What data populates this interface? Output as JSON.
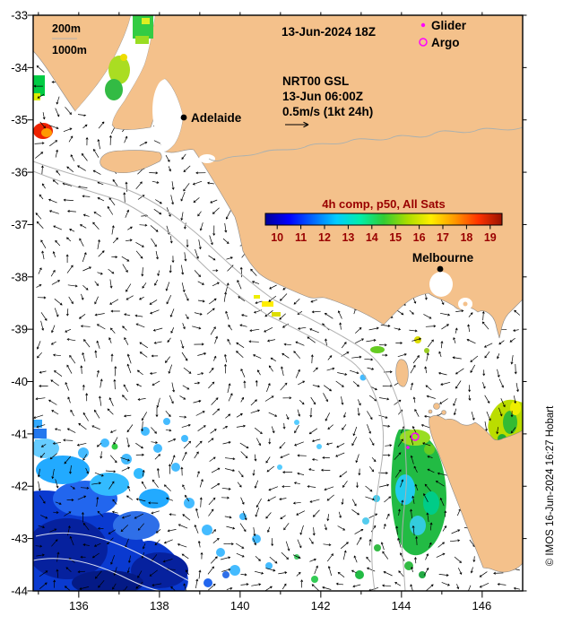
{
  "header": {
    "contour_labels": {
      "c200": "200m",
      "c1000": "1000m"
    },
    "timestamp": "13-Jun-2024 18Z",
    "obs_legend": {
      "glider": "Glider",
      "argo": "Argo",
      "marker_color": "#ff00ff"
    },
    "model": {
      "name": "NRT00 GSL",
      "valid": "13-Jun 06:00Z",
      "vector_scale": "0.5m/s (1kt 24h)"
    }
  },
  "colorbar": {
    "label": "4h comp, p50, All Sats",
    "tick_labels": [
      "10",
      "11",
      "12",
      "13",
      "14",
      "15",
      "16",
      "17",
      "18",
      "19"
    ],
    "label_color": "#990000",
    "colors": [
      "#000099",
      "#0000ff",
      "#0066ff",
      "#00ccff",
      "#00eeaa",
      "#33cc33",
      "#aadd00",
      "#ffee00",
      "#ff9900",
      "#ff3300",
      "#991100"
    ]
  },
  "cities": [
    {
      "name": "Adelaide"
    },
    {
      "name": "Melbourne"
    }
  ],
  "axes": {
    "lat_ticks": [
      "-33",
      "-34",
      "-35",
      "-36",
      "-37",
      "-38",
      "-39",
      "-40",
      "-41",
      "-42",
      "-43",
      "-44"
    ],
    "lon_ticks": [
      "136",
      "138",
      "140",
      "142",
      "144",
      "146"
    ]
  },
  "credit": "© IMOS 16-Jun-2024 16:27 Hobart",
  "palette": {
    "land": "#f4c18b",
    "sea": "#ffffff",
    "contour": "#b0b0b0",
    "vector": "#000000"
  }
}
